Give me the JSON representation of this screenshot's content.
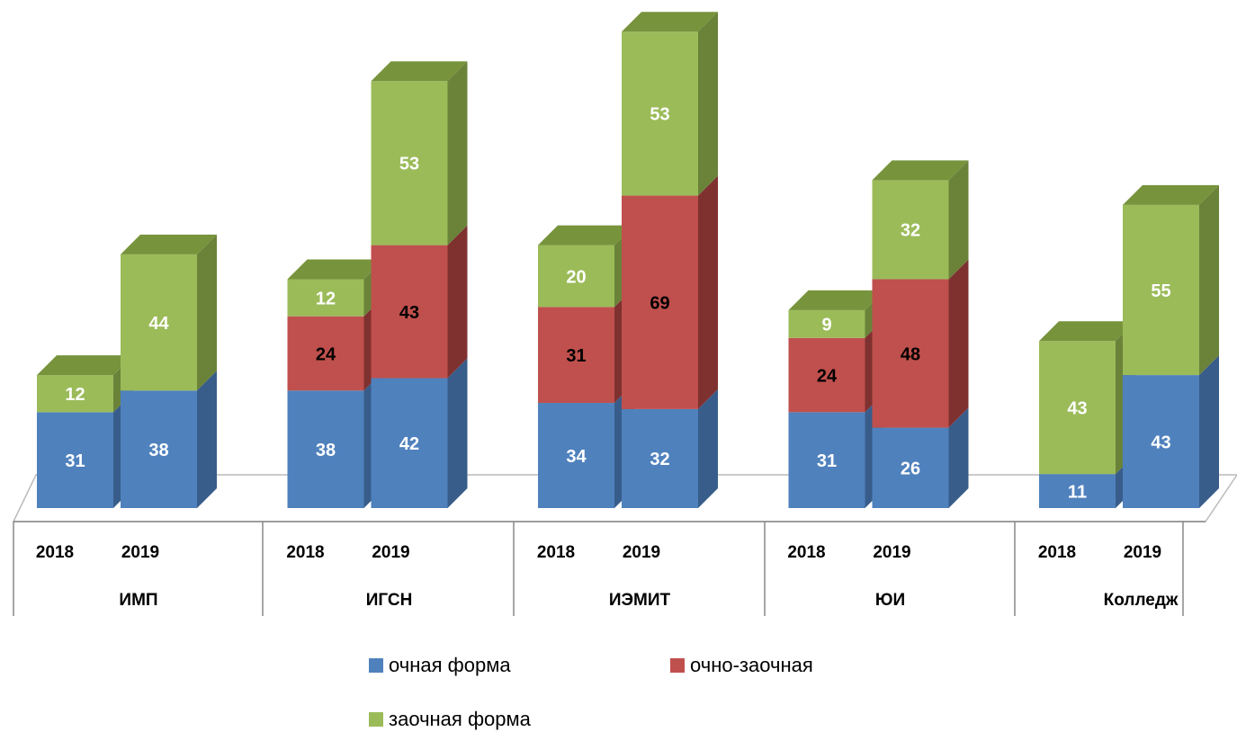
{
  "chart_data": {
    "type": "bar3d_stacked",
    "groups": [
      "ИМП",
      "ИГСН",
      "ИЭМИТ",
      "ЮИ",
      "Колледж"
    ],
    "categories": [
      "2018",
      "2019",
      "2018",
      "2019",
      "2018",
      "2019",
      "2018",
      "2019",
      "2018",
      "2019"
    ],
    "series": [
      {
        "name": "очная форма",
        "color": "#4f81bd",
        "side_color": "#385d8a",
        "top_color": "#6d94c6",
        "label_color": "#ffffff",
        "values": [
          31,
          38,
          38,
          42,
          34,
          32,
          31,
          26,
          11,
          43
        ]
      },
      {
        "name": "очно-заочная",
        "color": "#c0504d",
        "side_color": "#7f3130",
        "top_color": "#a84442",
        "label_color": "#000000",
        "values": [
          null,
          null,
          24,
          43,
          31,
          69,
          24,
          48,
          null,
          null
        ]
      },
      {
        "name": "заочная форма",
        "color": "#9bbb59",
        "side_color": "#6a8339",
        "top_color": "#77933c",
        "label_color": "#ffffff",
        "values": [
          12,
          44,
          12,
          53,
          20,
          53,
          9,
          32,
          43,
          55
        ]
      }
    ]
  }
}
